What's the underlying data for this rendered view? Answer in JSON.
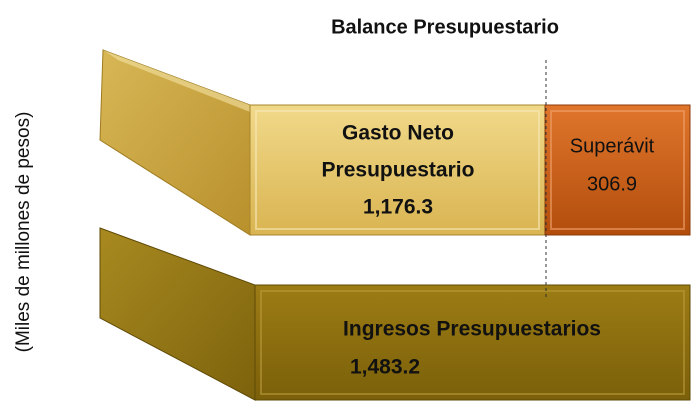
{
  "title": "Balance Presupuestario",
  "axis_label": "(Miles de millones de pesos)",
  "blocks": [
    {
      "label_lines": [
        "Gasto Neto",
        "Presupuestario"
      ],
      "value": "1,176.3"
    },
    {
      "label": "Superávit",
      "value": "306.9"
    },
    {
      "label": "Ingresos Presupuestarios",
      "value": "1,483.2"
    }
  ]
}
